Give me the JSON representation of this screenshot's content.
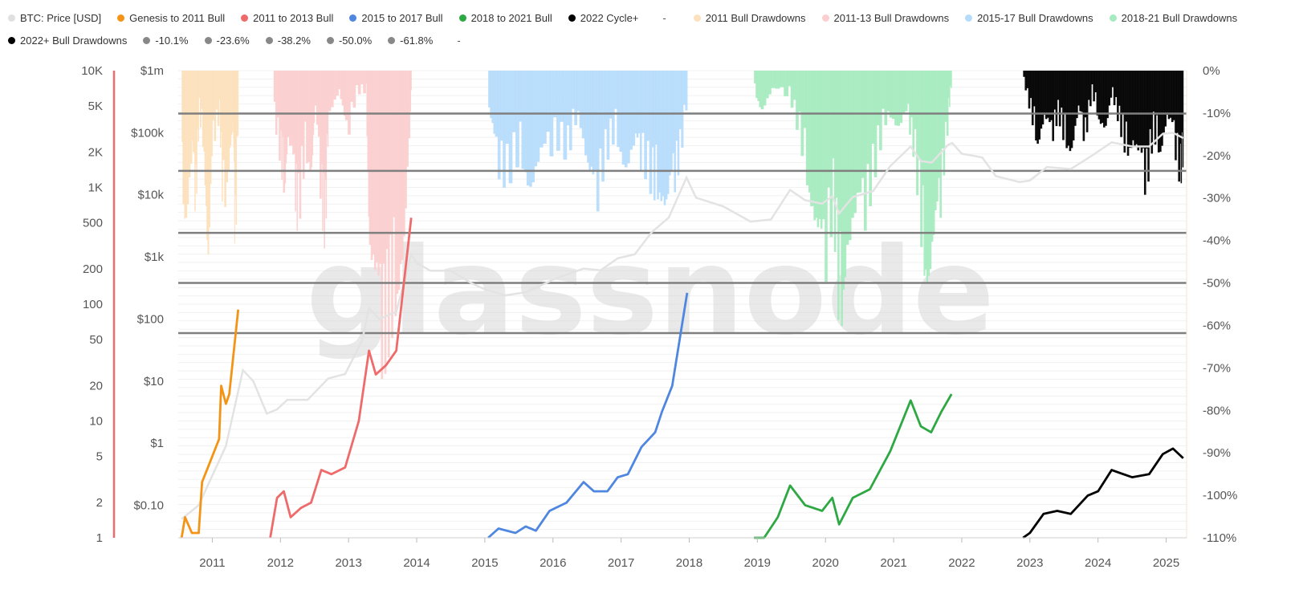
{
  "legend": {
    "row1": [
      {
        "label": "BTC: Price [USD]",
        "color": "#e0e0e0"
      },
      {
        "label": "Genesis to 2011 Bull",
        "color": "#f39417"
      },
      {
        "label": "2011 to 2013 Bull",
        "color": "#ef6a6a"
      },
      {
        "label": "2015 to 2017 Bull",
        "color": "#4e86e0"
      },
      {
        "label": "2018 to 2021 Bull",
        "color": "#2ea843"
      },
      {
        "label": "2022 Cycle+",
        "color": "#000000"
      },
      {
        "label": "-",
        "color": null
      },
      {
        "label": "2011 Bull Drawdowns",
        "color": "#fde0bd"
      },
      {
        "label": "2011-13 Bull Drawdowns",
        "color": "#fbcfcf"
      },
      {
        "label": "2015-17 Bull Drawdowns",
        "color": "#b6dcfb"
      },
      {
        "label": "2018-21 Bull Drawdowns",
        "color": "#a6ebc0"
      }
    ],
    "row2": [
      {
        "label": "2022+ Bull Drawdowns",
        "color": "#000000"
      },
      {
        "label": "-10.1%",
        "color": "#888888"
      },
      {
        "label": "-23.6%",
        "color": "#888888"
      },
      {
        "label": "-38.2%",
        "color": "#888888"
      },
      {
        "label": "-50.0%",
        "color": "#888888"
      },
      {
        "label": "-61.8%",
        "color": "#888888"
      },
      {
        "label": "-",
        "color": null
      }
    ]
  },
  "watermark": "glassnode",
  "chart_data": {
    "type": "line",
    "x_axis": {
      "ticks": [
        "2011",
        "2012",
        "2013",
        "2014",
        "2015",
        "2016",
        "2017",
        "2018",
        "2019",
        "2020",
        "2021",
        "2022",
        "2023",
        "2024",
        "2025"
      ],
      "range": [
        2010.5,
        2025.3
      ]
    },
    "y_axis_outer_left": {
      "scale": "log",
      "ticks": [
        "10K",
        "5K",
        "2K",
        "1K",
        "500",
        "200",
        "100",
        "50",
        "20",
        "10",
        "5",
        "2",
        "1"
      ],
      "range": [
        1,
        10000
      ],
      "color": "#ef6a6a"
    },
    "y_axis_left": {
      "scale": "log",
      "ticks": [
        "$1m",
        "$100k",
        "$10k",
        "$1k",
        "$100",
        "$10",
        "$1",
        "$0.10"
      ],
      "range": [
        0.03,
        1000000
      ],
      "color": "#e0e0e0"
    },
    "y_axis_right": {
      "scale": "linear",
      "ticks": [
        "0%",
        "-10%",
        "-20%",
        "-30%",
        "-40%",
        "-50%",
        "-60%",
        "-70%",
        "-80%",
        "-90%",
        "-100%",
        "-110%"
      ],
      "range": [
        -110,
        0
      ]
    },
    "reference_lines": [
      {
        "label": "-10.1%",
        "value": -10.1
      },
      {
        "label": "-23.6%",
        "value": -23.6
      },
      {
        "label": "-38.2%",
        "value": -38.2
      },
      {
        "label": "-50.0%",
        "value": -50.0
      },
      {
        "label": "-61.8%",
        "value": -61.8
      }
    ],
    "btc_price": {
      "name": "BTC: Price [USD]",
      "color": "#e3e3e3",
      "points": [
        [
          2010.55,
          0.06
        ],
        [
          2010.8,
          0.1
        ],
        [
          2011.0,
          0.3
        ],
        [
          2011.2,
          0.9
        ],
        [
          2011.45,
          15
        ],
        [
          2011.6,
          10
        ],
        [
          2011.8,
          3
        ],
        [
          2011.95,
          3.5
        ],
        [
          2012.1,
          5
        ],
        [
          2012.4,
          5
        ],
        [
          2012.7,
          11
        ],
        [
          2012.95,
          13
        ],
        [
          2013.2,
          45
        ],
        [
          2013.3,
          150
        ],
        [
          2013.45,
          100
        ],
        [
          2013.7,
          130
        ],
        [
          2013.92,
          1100
        ],
        [
          2014.0,
          800
        ],
        [
          2014.2,
          600
        ],
        [
          2014.5,
          600
        ],
        [
          2014.8,
          380
        ],
        [
          2015.0,
          300
        ],
        [
          2015.3,
          240
        ],
        [
          2015.6,
          270
        ],
        [
          2015.9,
          380
        ],
        [
          2016.0,
          430
        ],
        [
          2016.45,
          650
        ],
        [
          2016.7,
          610
        ],
        [
          2016.95,
          950
        ],
        [
          2017.2,
          1100
        ],
        [
          2017.45,
          2500
        ],
        [
          2017.7,
          4300
        ],
        [
          2017.96,
          19000
        ],
        [
          2018.1,
          9000
        ],
        [
          2018.5,
          6500
        ],
        [
          2018.9,
          3700
        ],
        [
          2019.2,
          4000
        ],
        [
          2019.48,
          12000
        ],
        [
          2019.7,
          8200
        ],
        [
          2019.95,
          7200
        ],
        [
          2020.1,
          9500
        ],
        [
          2020.2,
          5000
        ],
        [
          2020.4,
          9200
        ],
        [
          2020.7,
          11500
        ],
        [
          2020.95,
          29000
        ],
        [
          2021.25,
          60000
        ],
        [
          2021.4,
          35000
        ],
        [
          2021.56,
          33000
        ],
        [
          2021.8,
          64000
        ],
        [
          2021.86,
          68000
        ],
        [
          2022.0,
          46000
        ],
        [
          2022.3,
          40000
        ],
        [
          2022.5,
          20000
        ],
        [
          2022.85,
          16000
        ],
        [
          2023.0,
          17000
        ],
        [
          2023.25,
          28000
        ],
        [
          2023.6,
          26000
        ],
        [
          2023.9,
          42000
        ],
        [
          2024.2,
          70000
        ],
        [
          2024.5,
          60000
        ],
        [
          2024.75,
          60000
        ],
        [
          2024.95,
          96000
        ],
        [
          2025.1,
          100000
        ],
        [
          2025.25,
          82000
        ]
      ]
    },
    "series": [
      {
        "name": "Genesis to 2011 Bull",
        "color": "#f39417",
        "points": [
          [
            2010.55,
            1.0
          ],
          [
            2010.6,
            1.5
          ],
          [
            2010.7,
            1.1
          ],
          [
            2010.8,
            1.1
          ],
          [
            2010.85,
            3.0
          ],
          [
            2010.95,
            4.2
          ],
          [
            2011.1,
            7.0
          ],
          [
            2011.13,
            20
          ],
          [
            2011.2,
            14
          ],
          [
            2011.25,
            17
          ],
          [
            2011.38,
            90
          ]
        ]
      },
      {
        "name": "2011 to 2013 Bull",
        "color": "#ef6a6a",
        "points": [
          [
            2011.85,
            1.0
          ],
          [
            2011.95,
            2.2
          ],
          [
            2012.05,
            2.5
          ],
          [
            2012.15,
            1.5
          ],
          [
            2012.3,
            1.8
          ],
          [
            2012.45,
            2.0
          ],
          [
            2012.6,
            3.8
          ],
          [
            2012.75,
            3.5
          ],
          [
            2012.95,
            4.0
          ],
          [
            2013.15,
            10
          ],
          [
            2013.3,
            40
          ],
          [
            2013.4,
            25
          ],
          [
            2013.55,
            30
          ],
          [
            2013.7,
            40
          ],
          [
            2013.92,
            550
          ]
        ]
      },
      {
        "name": "2015 to 2017 Bull",
        "color": "#4e86e0",
        "points": [
          [
            2015.05,
            1.0
          ],
          [
            2015.2,
            1.2
          ],
          [
            2015.45,
            1.1
          ],
          [
            2015.6,
            1.25
          ],
          [
            2015.75,
            1.15
          ],
          [
            2015.95,
            1.7
          ],
          [
            2016.2,
            2.0
          ],
          [
            2016.45,
            3.0
          ],
          [
            2016.6,
            2.5
          ],
          [
            2016.8,
            2.5
          ],
          [
            2016.95,
            3.3
          ],
          [
            2017.1,
            3.5
          ],
          [
            2017.3,
            6.0
          ],
          [
            2017.5,
            8.0
          ],
          [
            2017.6,
            12
          ],
          [
            2017.75,
            20
          ],
          [
            2017.97,
            125
          ]
        ]
      },
      {
        "name": "2018 to 2021 Bull",
        "color": "#2ea843",
        "points": [
          [
            2018.95,
            1.0
          ],
          [
            2019.1,
            1.0
          ],
          [
            2019.3,
            1.5
          ],
          [
            2019.48,
            2.8
          ],
          [
            2019.7,
            1.9
          ],
          [
            2019.95,
            1.7
          ],
          [
            2020.1,
            2.2
          ],
          [
            2020.2,
            1.3
          ],
          [
            2020.4,
            2.2
          ],
          [
            2020.65,
            2.6
          ],
          [
            2020.95,
            5.5
          ],
          [
            2021.25,
            15
          ],
          [
            2021.4,
            9
          ],
          [
            2021.55,
            8
          ],
          [
            2021.7,
            12
          ],
          [
            2021.85,
            17
          ]
        ]
      },
      {
        "name": "2022 Cycle+",
        "color": "#000000",
        "points": [
          [
            2022.9,
            1.0
          ],
          [
            2023.0,
            1.1
          ],
          [
            2023.2,
            1.6
          ],
          [
            2023.4,
            1.7
          ],
          [
            2023.6,
            1.6
          ],
          [
            2023.85,
            2.3
          ],
          [
            2024.0,
            2.5
          ],
          [
            2024.2,
            3.8
          ],
          [
            2024.5,
            3.3
          ],
          [
            2024.75,
            3.5
          ],
          [
            2024.95,
            5.2
          ],
          [
            2025.1,
            5.8
          ],
          [
            2025.25,
            4.8
          ]
        ]
      }
    ],
    "drawdown_areas": [
      {
        "name": "2011 Bull Drawdowns",
        "color": "#fde0bd",
        "start": 2010.55,
        "end": 2011.38,
        "points": [
          [
            2010.55,
            -28
          ],
          [
            2010.6,
            -38
          ],
          [
            2010.7,
            -20
          ],
          [
            2010.75,
            -30
          ],
          [
            2010.8,
            -10
          ],
          [
            2010.87,
            -20
          ],
          [
            2010.93,
            -50
          ],
          [
            2011.0,
            -15
          ],
          [
            2011.1,
            -10
          ],
          [
            2011.15,
            -35
          ],
          [
            2011.25,
            -20
          ],
          [
            2011.3,
            -15
          ],
          [
            2011.33,
            -40
          ],
          [
            2011.38,
            -5
          ]
        ]
      },
      {
        "name": "2011-13 Bull Drawdowns",
        "color": "#fbcfcf",
        "start": 2011.9,
        "end": 2013.92,
        "points": [
          [
            2011.9,
            -10
          ],
          [
            2012.0,
            -22
          ],
          [
            2012.05,
            -30
          ],
          [
            2012.1,
            -18
          ],
          [
            2012.2,
            -25
          ],
          [
            2012.25,
            -35
          ],
          [
            2012.35,
            -20
          ],
          [
            2012.45,
            -25
          ],
          [
            2012.5,
            -10
          ],
          [
            2012.6,
            -30
          ],
          [
            2012.65,
            -40
          ],
          [
            2012.7,
            -10
          ],
          [
            2012.85,
            -5
          ],
          [
            2012.95,
            -15
          ],
          [
            2013.1,
            -5
          ],
          [
            2013.25,
            -5
          ],
          [
            2013.3,
            -45
          ],
          [
            2013.4,
            -55
          ],
          [
            2013.5,
            -62
          ],
          [
            2013.6,
            -60
          ],
          [
            2013.7,
            -55
          ],
          [
            2013.8,
            -45
          ],
          [
            2013.9,
            -10
          ],
          [
            2013.92,
            -2
          ]
        ]
      },
      {
        "name": "2015-17 Bull Drawdowns",
        "color": "#b6dcfb",
        "start": 2015.05,
        "end": 2017.97,
        "points": [
          [
            2015.05,
            -10
          ],
          [
            2015.15,
            -20
          ],
          [
            2015.3,
            -25
          ],
          [
            2015.5,
            -20
          ],
          [
            2015.65,
            -30
          ],
          [
            2015.8,
            -22
          ],
          [
            2016.0,
            -15
          ],
          [
            2016.2,
            -20
          ],
          [
            2016.35,
            -10
          ],
          [
            2016.5,
            -25
          ],
          [
            2016.6,
            -30
          ],
          [
            2016.75,
            -20
          ],
          [
            2016.9,
            -15
          ],
          [
            2017.05,
            -25
          ],
          [
            2017.2,
            -18
          ],
          [
            2017.3,
            -20
          ],
          [
            2017.45,
            -28
          ],
          [
            2017.55,
            -30
          ],
          [
            2017.65,
            -35
          ],
          [
            2017.75,
            -25
          ],
          [
            2017.85,
            -20
          ],
          [
            2017.97,
            -5
          ]
        ]
      },
      {
        "name": "2018-21 Bull Drawdowns",
        "color": "#a6ebc0",
        "start": 2018.95,
        "end": 2021.85,
        "points": [
          [
            2018.95,
            -5
          ],
          [
            2019.05,
            -10
          ],
          [
            2019.2,
            -5
          ],
          [
            2019.45,
            -5
          ],
          [
            2019.6,
            -15
          ],
          [
            2019.75,
            -30
          ],
          [
            2019.85,
            -40
          ],
          [
            2019.95,
            -45
          ],
          [
            2020.1,
            -30
          ],
          [
            2020.2,
            -63
          ],
          [
            2020.3,
            -45
          ],
          [
            2020.45,
            -35
          ],
          [
            2020.6,
            -30
          ],
          [
            2020.75,
            -20
          ],
          [
            2020.9,
            -10
          ],
          [
            2021.05,
            -15
          ],
          [
            2021.2,
            -10
          ],
          [
            2021.3,
            -20
          ],
          [
            2021.42,
            -45
          ],
          [
            2021.5,
            -53
          ],
          [
            2021.6,
            -40
          ],
          [
            2021.7,
            -25
          ],
          [
            2021.8,
            -10
          ],
          [
            2021.85,
            -2
          ]
        ]
      },
      {
        "name": "2022+ Bull Drawdowns",
        "color": "#000000",
        "start": 2022.9,
        "end": 2025.25,
        "points": [
          [
            2022.9,
            -2
          ],
          [
            2023.0,
            -10
          ],
          [
            2023.1,
            -18
          ],
          [
            2023.2,
            -12
          ],
          [
            2023.3,
            -15
          ],
          [
            2023.4,
            -10
          ],
          [
            2023.5,
            -17
          ],
          [
            2023.6,
            -20
          ],
          [
            2023.7,
            -10
          ],
          [
            2023.8,
            -15
          ],
          [
            2023.9,
            -5
          ],
          [
            2024.0,
            -12
          ],
          [
            2024.1,
            -15
          ],
          [
            2024.2,
            -5
          ],
          [
            2024.3,
            -12
          ],
          [
            2024.4,
            -20
          ],
          [
            2024.5,
            -18
          ],
          [
            2024.6,
            -22
          ],
          [
            2024.7,
            -25
          ],
          [
            2024.8,
            -15
          ],
          [
            2024.9,
            -20
          ],
          [
            2025.0,
            -12
          ],
          [
            2025.1,
            -15
          ],
          [
            2025.2,
            -25
          ],
          [
            2025.25,
            -20
          ]
        ]
      }
    ],
    "grid": true
  }
}
